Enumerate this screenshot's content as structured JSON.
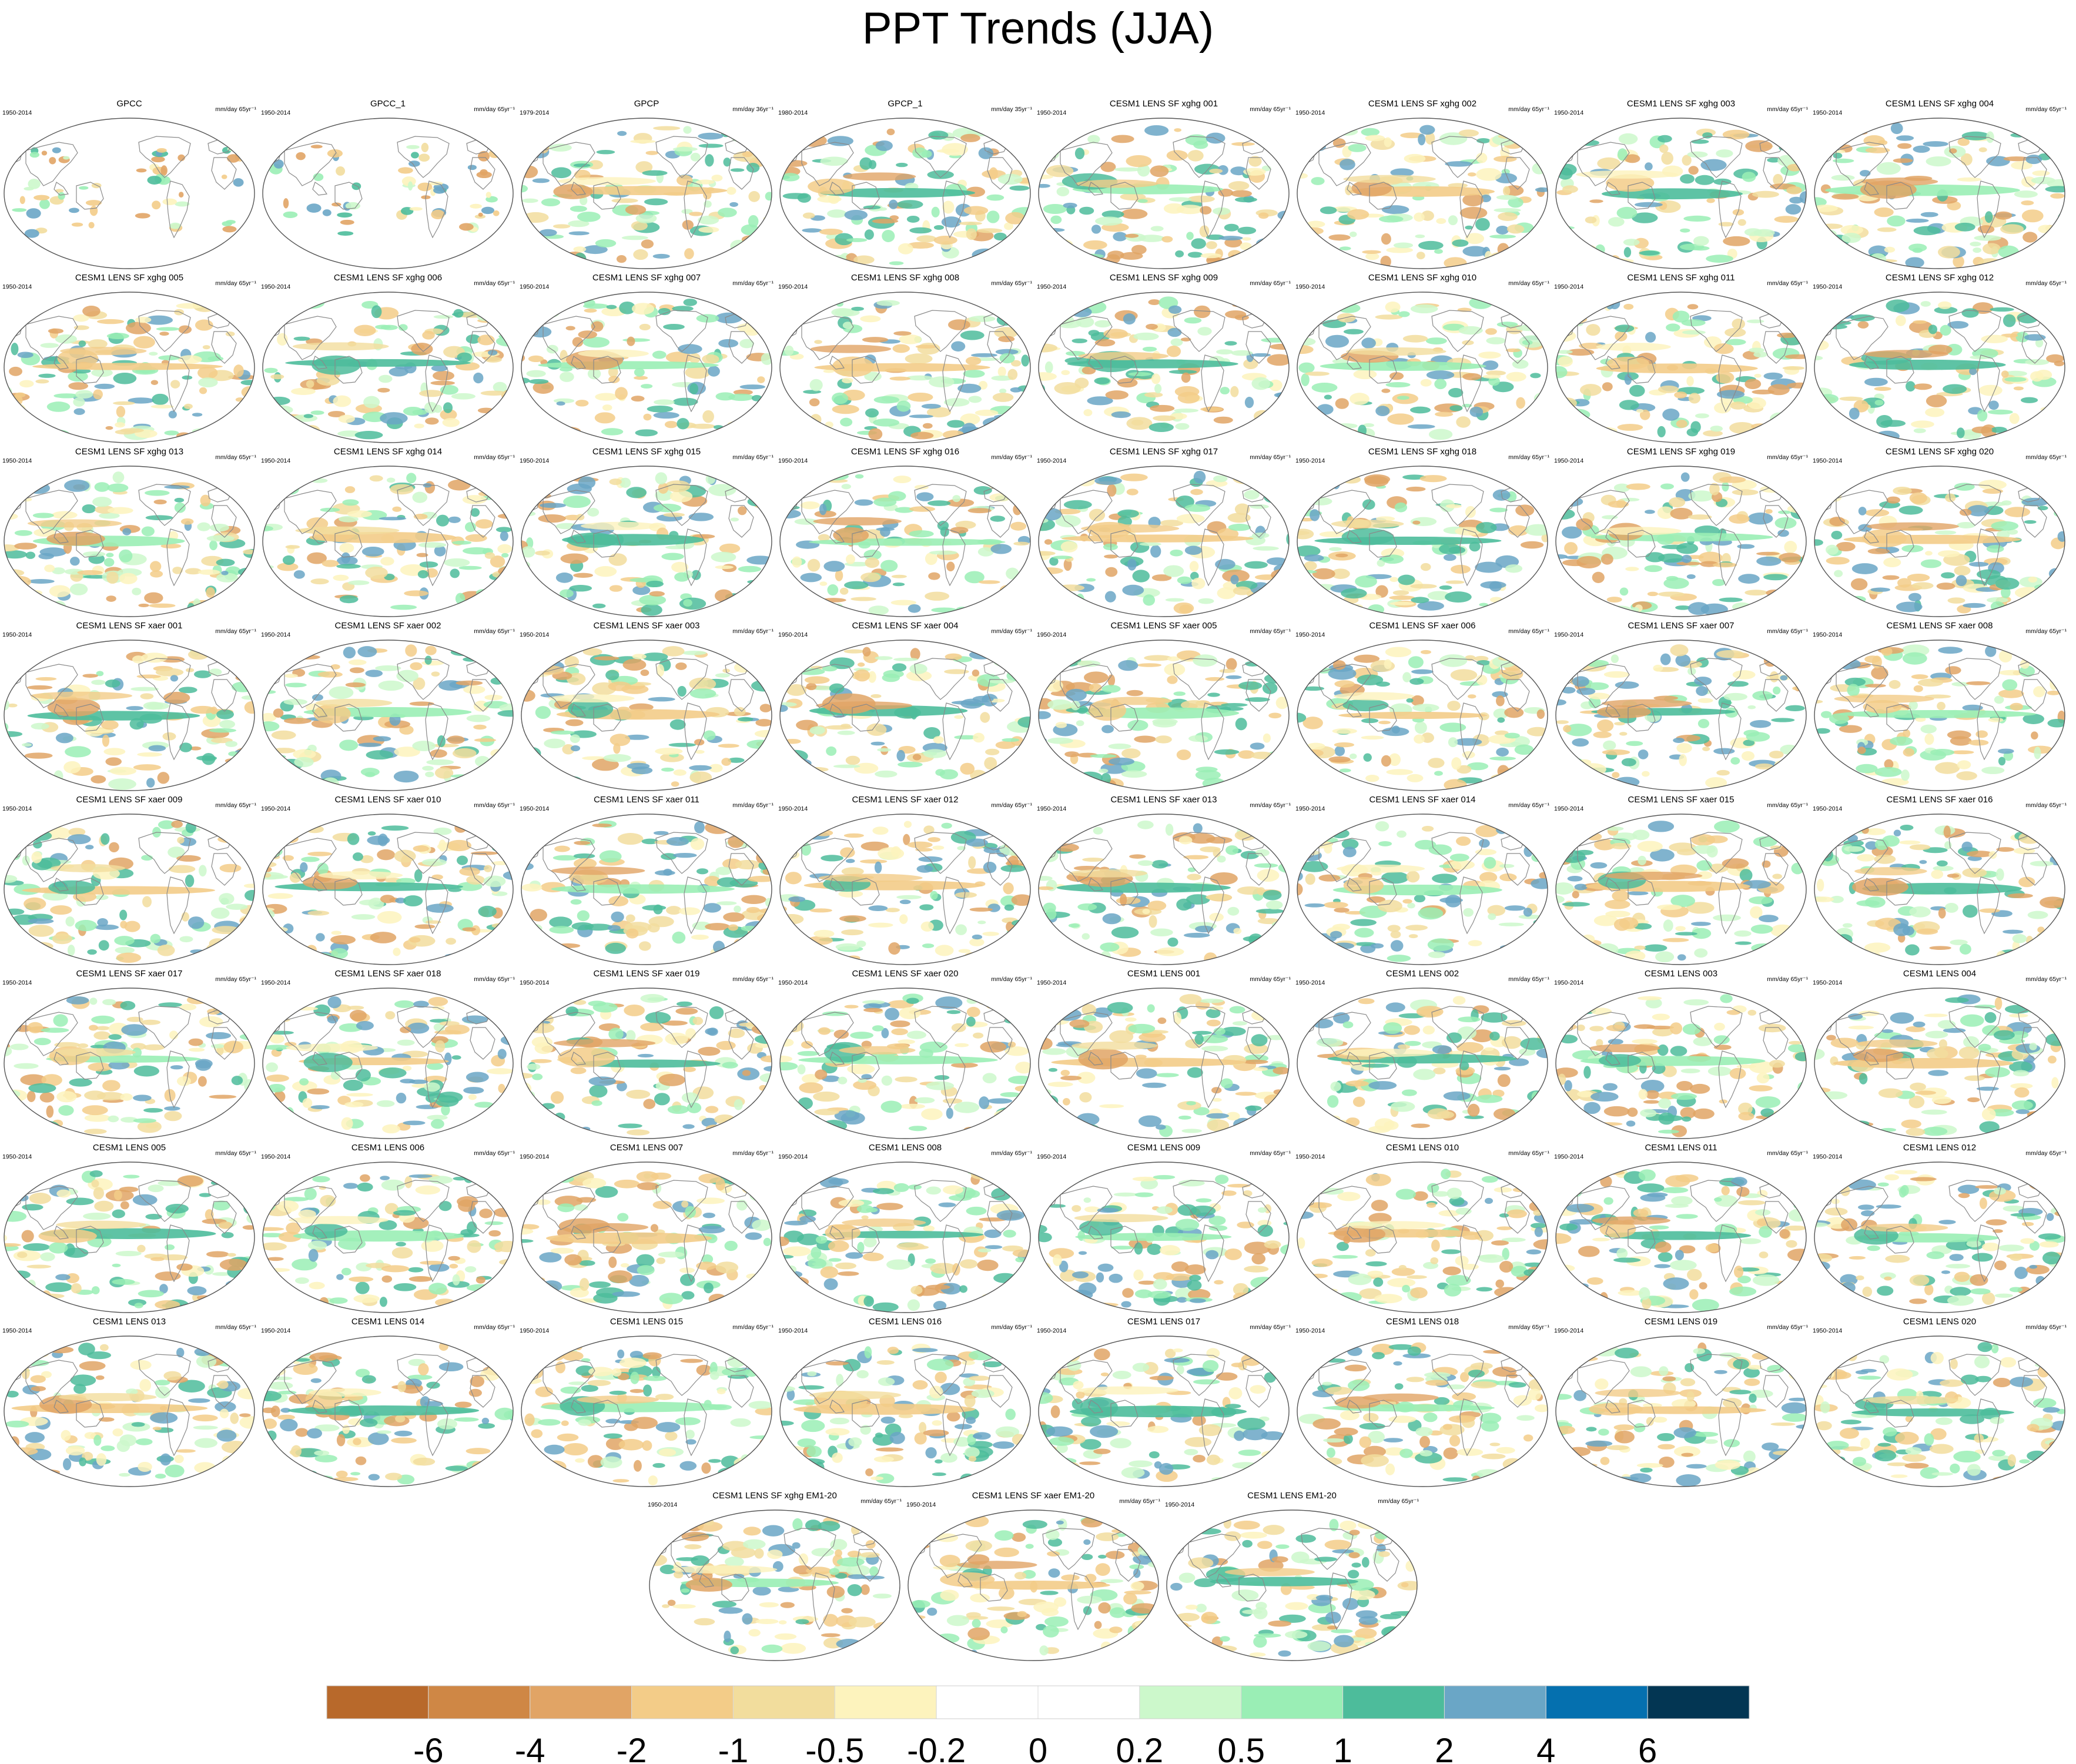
{
  "title": "PPT Trends (JJA)",
  "panels": [
    {
      "title": "GPCC",
      "period": "1950-2014",
      "units": "mm/day 65yr⁻¹",
      "coverage": "land"
    },
    {
      "title": "GPCC_1",
      "period": "1950-2014",
      "units": "mm/day 65yr⁻¹",
      "coverage": "land"
    },
    {
      "title": "GPCP",
      "period": "1979-2014",
      "units": "mm/day 36yr⁻¹",
      "coverage": "global"
    },
    {
      "title": "GPCP_1",
      "period": "1980-2014",
      "units": "mm/day 35yr⁻¹",
      "coverage": "global"
    },
    {
      "title": "CESM1 LENS SF xghg 001",
      "period": "1950-2014",
      "units": "mm/day 65yr⁻¹",
      "coverage": "global"
    },
    {
      "title": "CESM1 LENS SF xghg 002",
      "period": "1950-2014",
      "units": "mm/day 65yr⁻¹",
      "coverage": "global"
    },
    {
      "title": "CESM1 LENS SF xghg 003",
      "period": "1950-2014",
      "units": "mm/day 65yr⁻¹",
      "coverage": "global"
    },
    {
      "title": "CESM1 LENS SF xghg 004",
      "period": "1950-2014",
      "units": "mm/day 65yr⁻¹",
      "coverage": "global"
    },
    {
      "title": "CESM1 LENS SF xghg 005",
      "period": "1950-2014",
      "units": "mm/day 65yr⁻¹",
      "coverage": "global"
    },
    {
      "title": "CESM1 LENS SF xghg 006",
      "period": "1950-2014",
      "units": "mm/day 65yr⁻¹",
      "coverage": "global"
    },
    {
      "title": "CESM1 LENS SF xghg 007",
      "period": "1950-2014",
      "units": "mm/day 65yr⁻¹",
      "coverage": "global"
    },
    {
      "title": "CESM1 LENS SF xghg 008",
      "period": "1950-2014",
      "units": "mm/day 65yr⁻¹",
      "coverage": "global"
    },
    {
      "title": "CESM1 LENS SF xghg 009",
      "period": "1950-2014",
      "units": "mm/day 65yr⁻¹",
      "coverage": "global"
    },
    {
      "title": "CESM1 LENS SF xghg 010",
      "period": "1950-2014",
      "units": "mm/day 65yr⁻¹",
      "coverage": "global"
    },
    {
      "title": "CESM1 LENS SF xghg 011",
      "period": "1950-2014",
      "units": "mm/day 65yr⁻¹",
      "coverage": "global"
    },
    {
      "title": "CESM1 LENS SF xghg 012",
      "period": "1950-2014",
      "units": "mm/day 65yr⁻¹",
      "coverage": "global"
    },
    {
      "title": "CESM1 LENS SF xghg 013",
      "period": "1950-2014",
      "units": "mm/day 65yr⁻¹",
      "coverage": "global"
    },
    {
      "title": "CESM1 LENS SF xghg 014",
      "period": "1950-2014",
      "units": "mm/day 65yr⁻¹",
      "coverage": "global"
    },
    {
      "title": "CESM1 LENS SF xghg 015",
      "period": "1950-2014",
      "units": "mm/day 65yr⁻¹",
      "coverage": "global"
    },
    {
      "title": "CESM1 LENS SF xghg 016",
      "period": "1950-2014",
      "units": "mm/day 65yr⁻¹",
      "coverage": "global"
    },
    {
      "title": "CESM1 LENS SF xghg 017",
      "period": "1950-2014",
      "units": "mm/day 65yr⁻¹",
      "coverage": "global"
    },
    {
      "title": "CESM1 LENS SF xghg 018",
      "period": "1950-2014",
      "units": "mm/day 65yr⁻¹",
      "coverage": "global"
    },
    {
      "title": "CESM1 LENS SF xghg 019",
      "period": "1950-2014",
      "units": "mm/day 65yr⁻¹",
      "coverage": "global"
    },
    {
      "title": "CESM1 LENS SF xghg 020",
      "period": "1950-2014",
      "units": "mm/day 65yr⁻¹",
      "coverage": "global"
    },
    {
      "title": "CESM1 LENS SF xaer 001",
      "period": "1950-2014",
      "units": "mm/day 65yr⁻¹",
      "coverage": "global"
    },
    {
      "title": "CESM1 LENS SF xaer 002",
      "period": "1950-2014",
      "units": "mm/day 65yr⁻¹",
      "coverage": "global"
    },
    {
      "title": "CESM1 LENS SF xaer 003",
      "period": "1950-2014",
      "units": "mm/day 65yr⁻¹",
      "coverage": "global"
    },
    {
      "title": "CESM1 LENS SF xaer 004",
      "period": "1950-2014",
      "units": "mm/day 65yr⁻¹",
      "coverage": "global"
    },
    {
      "title": "CESM1 LENS SF xaer 005",
      "period": "1950-2014",
      "units": "mm/day 65yr⁻¹",
      "coverage": "global"
    },
    {
      "title": "CESM1 LENS SF xaer 006",
      "period": "1950-2014",
      "units": "mm/day 65yr⁻¹",
      "coverage": "global"
    },
    {
      "title": "CESM1 LENS SF xaer 007",
      "period": "1950-2014",
      "units": "mm/day 65yr⁻¹",
      "coverage": "global"
    },
    {
      "title": "CESM1 LENS SF xaer 008",
      "period": "1950-2014",
      "units": "mm/day 65yr⁻¹",
      "coverage": "global"
    },
    {
      "title": "CESM1 LENS SF xaer 009",
      "period": "1950-2014",
      "units": "mm/day 65yr⁻¹",
      "coverage": "global"
    },
    {
      "title": "CESM1 LENS SF xaer 010",
      "period": "1950-2014",
      "units": "mm/day 65yr⁻¹",
      "coverage": "global"
    },
    {
      "title": "CESM1 LENS SF xaer 011",
      "period": "1950-2014",
      "units": "mm/day 65yr⁻¹",
      "coverage": "global"
    },
    {
      "title": "CESM1 LENS SF xaer 012",
      "period": "1950-2014",
      "units": "mm/day 65yr⁻¹",
      "coverage": "global"
    },
    {
      "title": "CESM1 LENS SF xaer 013",
      "period": "1950-2014",
      "units": "mm/day 65yr⁻¹",
      "coverage": "global"
    },
    {
      "title": "CESM1 LENS SF xaer 014",
      "period": "1950-2014",
      "units": "mm/day 65yr⁻¹",
      "coverage": "global"
    },
    {
      "title": "CESM1 LENS SF xaer 015",
      "period": "1950-2014",
      "units": "mm/day 65yr⁻¹",
      "coverage": "global"
    },
    {
      "title": "CESM1 LENS SF xaer 016",
      "period": "1950-2014",
      "units": "mm/day 65yr⁻¹",
      "coverage": "global"
    },
    {
      "title": "CESM1 LENS SF xaer 017",
      "period": "1950-2014",
      "units": "mm/day 65yr⁻¹",
      "coverage": "global"
    },
    {
      "title": "CESM1 LENS SF xaer 018",
      "period": "1950-2014",
      "units": "mm/day 65yr⁻¹",
      "coverage": "global"
    },
    {
      "title": "CESM1 LENS SF xaer 019",
      "period": "1950-2014",
      "units": "mm/day 65yr⁻¹",
      "coverage": "global"
    },
    {
      "title": "CESM1 LENS SF xaer 020",
      "period": "1950-2014",
      "units": "mm/day 65yr⁻¹",
      "coverage": "global"
    },
    {
      "title": "CESM1 LENS 001",
      "period": "1950-2014",
      "units": "mm/day 65yr⁻¹",
      "coverage": "global"
    },
    {
      "title": "CESM1 LENS 002",
      "period": "1950-2014",
      "units": "mm/day 65yr⁻¹",
      "coverage": "global"
    },
    {
      "title": "CESM1 LENS 003",
      "period": "1950-2014",
      "units": "mm/day 65yr⁻¹",
      "coverage": "global"
    },
    {
      "title": "CESM1 LENS 004",
      "period": "1950-2014",
      "units": "mm/day 65yr⁻¹",
      "coverage": "global"
    },
    {
      "title": "CESM1 LENS 005",
      "period": "1950-2014",
      "units": "mm/day 65yr⁻¹",
      "coverage": "global"
    },
    {
      "title": "CESM1 LENS 006",
      "period": "1950-2014",
      "units": "mm/day 65yr⁻¹",
      "coverage": "global"
    },
    {
      "title": "CESM1 LENS 007",
      "period": "1950-2014",
      "units": "mm/day 65yr⁻¹",
      "coverage": "global"
    },
    {
      "title": "CESM1 LENS 008",
      "period": "1950-2014",
      "units": "mm/day 65yr⁻¹",
      "coverage": "global"
    },
    {
      "title": "CESM1 LENS 009",
      "period": "1950-2014",
      "units": "mm/day 65yr⁻¹",
      "coverage": "global"
    },
    {
      "title": "CESM1 LENS 010",
      "period": "1950-2014",
      "units": "mm/day 65yr⁻¹",
      "coverage": "global"
    },
    {
      "title": "CESM1 LENS 011",
      "period": "1950-2014",
      "units": "mm/day 65yr⁻¹",
      "coverage": "global"
    },
    {
      "title": "CESM1 LENS 012",
      "period": "1950-2014",
      "units": "mm/day 65yr⁻¹",
      "coverage": "global"
    },
    {
      "title": "CESM1 LENS 013",
      "period": "1950-2014",
      "units": "mm/day 65yr⁻¹",
      "coverage": "global"
    },
    {
      "title": "CESM1 LENS 014",
      "period": "1950-2014",
      "units": "mm/day 65yr⁻¹",
      "coverage": "global"
    },
    {
      "title": "CESM1 LENS 015",
      "period": "1950-2014",
      "units": "mm/day 65yr⁻¹",
      "coverage": "global"
    },
    {
      "title": "CESM1 LENS 016",
      "period": "1950-2014",
      "units": "mm/day 65yr⁻¹",
      "coverage": "global"
    },
    {
      "title": "CESM1 LENS 017",
      "period": "1950-2014",
      "units": "mm/day 65yr⁻¹",
      "coverage": "global"
    },
    {
      "title": "CESM1 LENS 018",
      "period": "1950-2014",
      "units": "mm/day 65yr⁻¹",
      "coverage": "global"
    },
    {
      "title": "CESM1 LENS 019",
      "period": "1950-2014",
      "units": "mm/day 65yr⁻¹",
      "coverage": "global"
    },
    {
      "title": "CESM1 LENS 020",
      "period": "1950-2014",
      "units": "mm/day 65yr⁻¹",
      "coverage": "global"
    },
    {
      "title": "CESM1 LENS SF xghg EM1-20",
      "period": "1950-2014",
      "units": "mm/day 65yr⁻¹",
      "coverage": "global"
    },
    {
      "title": "CESM1 LENS SF xaer EM1-20",
      "period": "1950-2014",
      "units": "mm/day 65yr⁻¹",
      "coverage": "global"
    },
    {
      "title": "CESM1 LENS EM1-20",
      "period": "1950-2014",
      "units": "mm/day 65yr⁻¹",
      "coverage": "global"
    }
  ],
  "chart_data": {
    "type": "heatmap",
    "title": "PPT Trends (JJA)",
    "projection": "robinson",
    "colorbar": {
      "levels": [
        "-6",
        "-4",
        "-2",
        "-1",
        "-0.5",
        "-0.2",
        "0",
        "0.2",
        "0.5",
        "1",
        "2",
        "4",
        "6"
      ],
      "colors": [
        "#b8692b",
        "#cf8745",
        "#e1a465",
        "#f3cc88",
        "#f2dd9d",
        "#fdf3bd",
        "#ffffff",
        "#ffffff",
        "#ccf8cb",
        "#9aeeb5",
        "#4dbc9b",
        "#6aa6c6",
        "#0570af",
        "#033653"
      ]
    }
  }
}
